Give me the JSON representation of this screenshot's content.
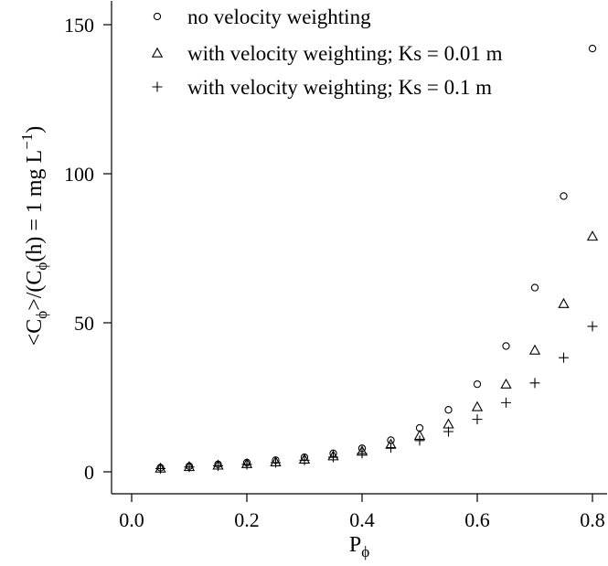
{
  "chart_data": {
    "type": "scatter",
    "title": "",
    "xlabel": {
      "main": "P",
      "sub": "ϕ"
    },
    "ylabel": {
      "p1": "<C",
      "s1": "ϕ",
      "p2": ">/(C",
      "s2": "ϕ",
      "p3": "(h) = 1 mg L",
      "sup": "−1",
      "p4": ")"
    },
    "xlim": [
      0.0,
      0.8
    ],
    "ylim": [
      0,
      150
    ],
    "x_ticks": [
      "0.0",
      "0.2",
      "0.4",
      "0.6",
      "0.8"
    ],
    "y_ticks": [
      "0",
      "50",
      "100",
      "150"
    ],
    "grid": false,
    "legend_position": "top-left",
    "series": [
      {
        "name": "no velocity weighting",
        "marker": "circle",
        "x": [
          0.05,
          0.1,
          0.15,
          0.2,
          0.25,
          0.3,
          0.35,
          0.4,
          0.45,
          0.5,
          0.55,
          0.6,
          0.65,
          0.7,
          0.75,
          0.8
        ],
        "y": [
          1.4,
          1.9,
          2.5,
          3.1,
          3.9,
          4.9,
          6.2,
          7.9,
          10.6,
          14.7,
          20.8,
          29.4,
          42.2,
          61.8,
          92.5,
          142
        ]
      },
      {
        "name": "with velocity weighting; Ks = 0.01 m",
        "marker": "triangle",
        "x": [
          0.05,
          0.1,
          0.15,
          0.2,
          0.25,
          0.3,
          0.35,
          0.4,
          0.45,
          0.5,
          0.55,
          0.6,
          0.65,
          0.7,
          0.75,
          0.8
        ],
        "y": [
          1.2,
          1.7,
          2.2,
          2.7,
          3.3,
          4.2,
          5.3,
          6.9,
          9.2,
          12.2,
          16.0,
          21.8,
          29.4,
          40.8,
          56.4,
          79.0
        ]
      },
      {
        "name": "with velocity weighting; Ks = 0.1 m",
        "marker": "plus",
        "x": [
          0.05,
          0.1,
          0.15,
          0.2,
          0.25,
          0.3,
          0.35,
          0.4,
          0.45,
          0.5,
          0.55,
          0.6,
          0.65,
          0.7,
          0.75,
          0.8
        ],
        "y": [
          1.1,
          1.6,
          2.0,
          2.5,
          3.1,
          3.9,
          4.9,
          6.2,
          8.1,
          10.5,
          13.5,
          17.6,
          23.2,
          29.8,
          38.3,
          48.8
        ]
      }
    ]
  }
}
